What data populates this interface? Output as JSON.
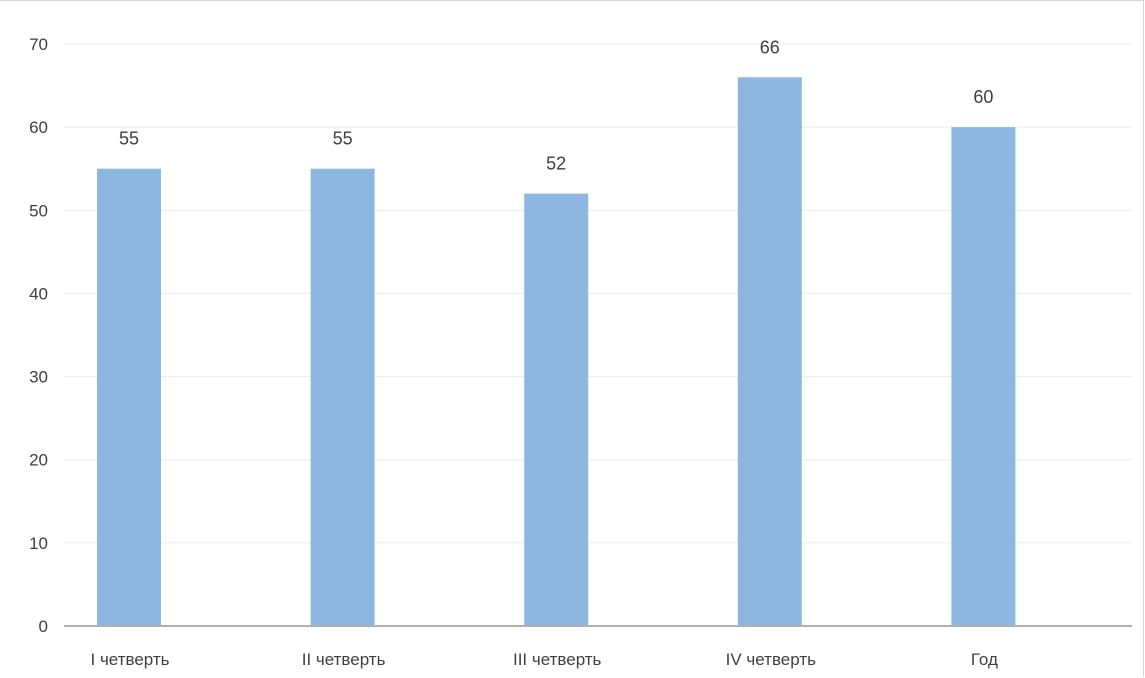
{
  "chart_data": {
    "type": "bar",
    "categories": [
      "I четверть",
      "II четверть",
      "III четверть",
      "IV четверть",
      "Год"
    ],
    "values": [
      55,
      55,
      52,
      66,
      60
    ],
    "data_labels": [
      "55",
      "55",
      "52",
      "66",
      "60"
    ],
    "title": "",
    "xlabel": "",
    "ylabel": "",
    "ylim": [
      0,
      70
    ],
    "yticks": [
      0,
      10,
      20,
      30,
      40,
      50,
      60,
      70
    ],
    "ytick_labels": [
      "0",
      "10",
      "20",
      "30",
      "40",
      "50",
      "60",
      "70"
    ],
    "grid": true,
    "legend": "none",
    "colors": {
      "bar": "#8db7e0",
      "grid": "#ececec",
      "axis": "#b0b0b0",
      "text": "#404040"
    }
  }
}
